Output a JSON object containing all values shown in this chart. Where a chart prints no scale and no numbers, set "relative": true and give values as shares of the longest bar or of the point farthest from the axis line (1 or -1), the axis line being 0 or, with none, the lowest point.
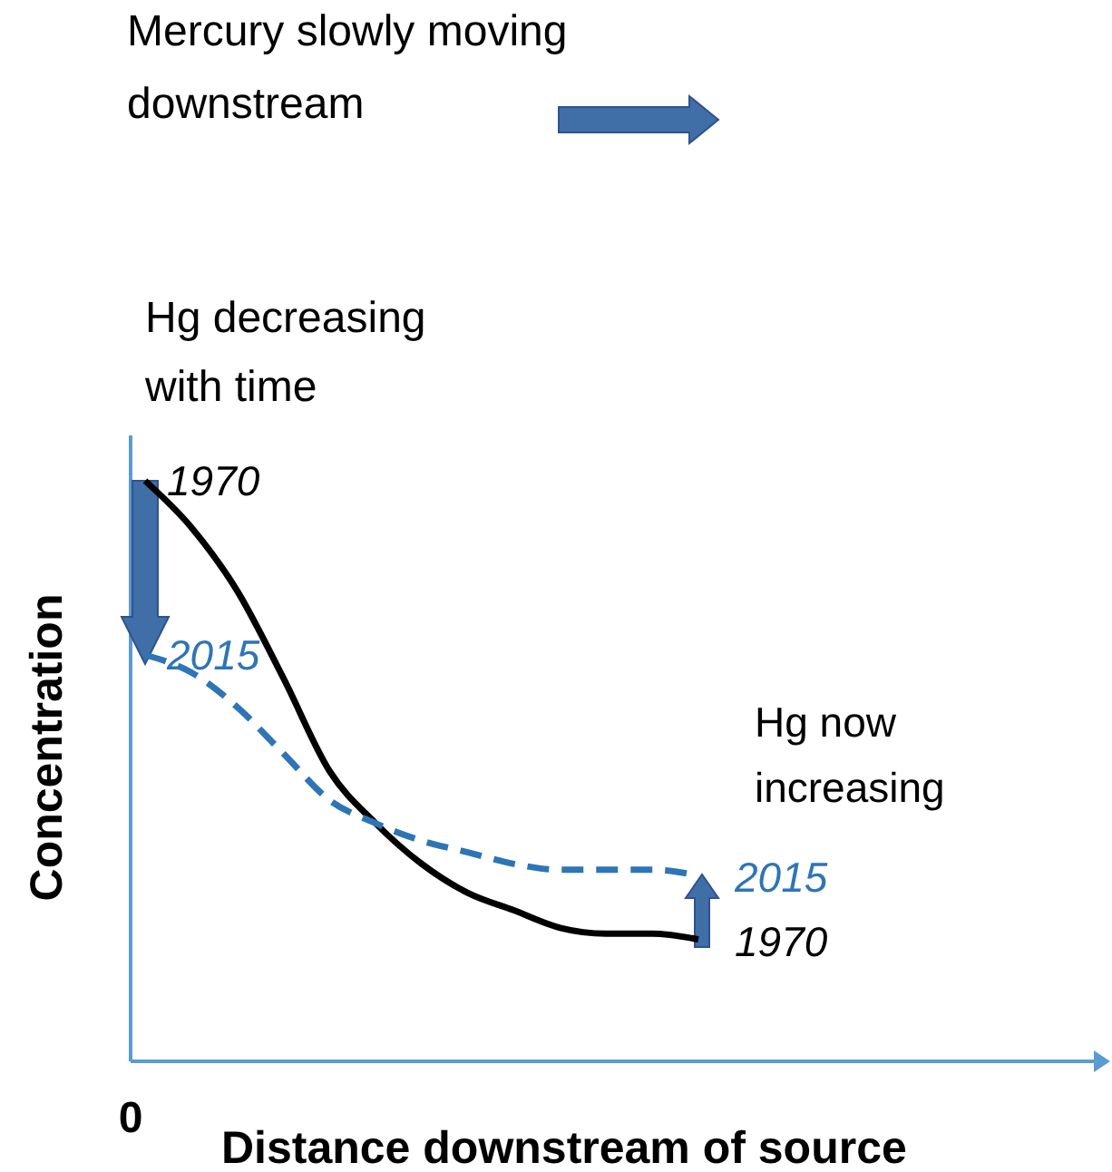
{
  "chart_data": {
    "type": "line",
    "relative": true,
    "xlabel": "Distance downstream of source",
    "ylabel": "Concentration",
    "categories": [
      null,
      null,
      null,
      null,
      null,
      null,
      null,
      null,
      null,
      null,
      null,
      null,
      null
    ],
    "series": [
      {
        "name": "1970",
        "color": "#000000",
        "line_style": "solid",
        "values": [
          1.0,
          0.92,
          0.81,
          0.66,
          0.5,
          0.41,
          0.34,
          0.29,
          0.26,
          0.23,
          0.22,
          0.22,
          0.21
        ]
      },
      {
        "name": "2015",
        "color": "#2e75b6",
        "line_style": "dashed",
        "values": [
          0.7,
          0.67,
          0.61,
          0.53,
          0.45,
          0.41,
          0.38,
          0.36,
          0.34,
          0.33,
          0.33,
          0.33,
          0.32
        ]
      }
    ],
    "annotations": [
      "Mercury slowly moving downstream",
      "Hg decreasing with time",
      "Hg now increasing",
      "0"
    ],
    "marker": "none"
  }
}
